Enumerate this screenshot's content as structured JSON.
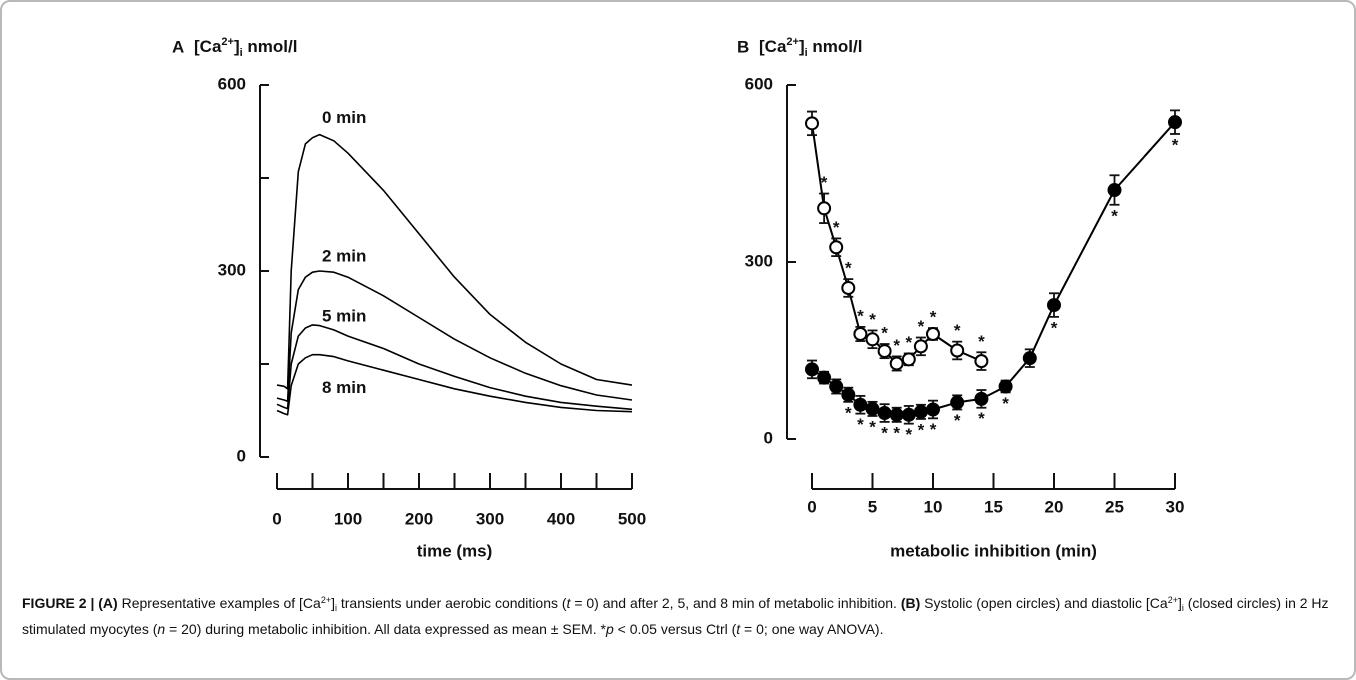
{
  "chart_data": [
    {
      "type": "line",
      "panel": "A",
      "title": [
        "[Ca",
        "2+",
        "]",
        "i",
        " nmol/l"
      ],
      "xlabel": "time (ms)",
      "x": [
        0,
        10,
        15,
        20,
        30,
        40,
        50,
        60,
        80,
        100,
        150,
        200,
        250,
        300,
        350,
        400,
        450,
        500
      ],
      "series": [
        {
          "name": "0 min",
          "color": "#000000",
          "values": [
            116,
            114,
            110,
            300,
            460,
            505,
            515,
            520,
            510,
            490,
            430,
            360,
            290,
            230,
            185,
            150,
            125,
            116
          ]
        },
        {
          "name": "2 min",
          "color": "#000000",
          "values": [
            95,
            92,
            90,
            200,
            270,
            290,
            298,
            300,
            298,
            290,
            260,
            225,
            190,
            160,
            135,
            115,
            100,
            92
          ]
        },
        {
          "name": "5 min",
          "color": "#000000",
          "values": [
            85,
            80,
            78,
            150,
            195,
            208,
            213,
            212,
            205,
            195,
            175,
            150,
            130,
            112,
            98,
            88,
            82,
            77
          ]
        },
        {
          "name": "8 min",
          "color": "#000000",
          "values": [
            75,
            70,
            68,
            115,
            150,
            160,
            165,
            165,
            162,
            155,
            140,
            125,
            110,
            98,
            88,
            80,
            75,
            73
          ]
        }
      ],
      "xlim": [
        0,
        500
      ],
      "xticks": [
        0,
        100,
        200,
        300,
        400,
        500
      ],
      "xminorticks": [
        50,
        150,
        250,
        350,
        450
      ],
      "ylim": [
        0,
        600
      ],
      "yticks": [
        0,
        300,
        600
      ],
      "yminorticks": [
        150,
        450
      ]
    },
    {
      "type": "line",
      "panel": "B",
      "title": [
        "[Ca",
        "2+",
        "]",
        "i",
        " nmol/l"
      ],
      "xlabel": "metabolic inhibition (min)",
      "series": [
        {
          "marker": "open",
          "color": "#000000",
          "x": [
            0,
            1,
            2,
            3,
            4,
            5,
            6,
            7,
            8,
            9,
            10,
            12,
            14
          ],
          "values": [
            535,
            391,
            325,
            256,
            178,
            169,
            149,
            128,
            135,
            157,
            178,
            150,
            132
          ],
          "errors": [
            20,
            25,
            15,
            15,
            12,
            15,
            12,
            12,
            10,
            15,
            10,
            15,
            15
          ],
          "significance": [
            null,
            "*",
            "*",
            "*",
            "*",
            "*",
            "*",
            "*",
            "*",
            "*",
            "*",
            "*",
            "*"
          ]
        },
        {
          "marker": "closed",
          "color": "#000000",
          "x": [
            0,
            1,
            2,
            3,
            4,
            5,
            6,
            7,
            8,
            9,
            10,
            12,
            14,
            16,
            18,
            20,
            25,
            30
          ],
          "values": [
            118,
            104,
            89,
            75,
            58,
            51,
            44,
            41,
            41,
            46,
            50,
            62,
            68,
            89,
            137,
            227,
            422,
            537
          ],
          "errors": [
            15,
            10,
            12,
            12,
            15,
            12,
            15,
            12,
            15,
            12,
            15,
            12,
            15,
            10,
            15,
            20,
            25,
            20
          ],
          "significance": [
            null,
            null,
            null,
            "*",
            "*",
            "*",
            "*",
            "*",
            "*",
            "*",
            "*",
            "*",
            "*",
            "*",
            null,
            "*",
            "*",
            "*"
          ]
        }
      ],
      "xlim": [
        0,
        30
      ],
      "xticks": [
        0,
        5,
        10,
        15,
        20,
        25,
        30
      ],
      "ylim": [
        0,
        600
      ],
      "yticks": [
        0,
        300,
        600
      ]
    }
  ],
  "caption": [
    "FIGURE 2 | (A)",
    " Representative examples of [Ca",
    "2+",
    "]",
    "i",
    " transients under aerobic conditions (",
    "t",
    " = 0) and after 2, 5, and 8 min of metabolic inhibition. ",
    "(B)",
    " Systolic (open circles) and diastolic [Ca",
    "2+",
    "]",
    "i",
    " (closed circles) in 2 Hz stimulated myocytes (",
    "n",
    " = 20) during metabolic inhibition. All data expressed as mean ± SEM. *",
    "p",
    " < 0.05 versus Ctrl (",
    "t",
    " = 0; one way ANOVA)."
  ]
}
